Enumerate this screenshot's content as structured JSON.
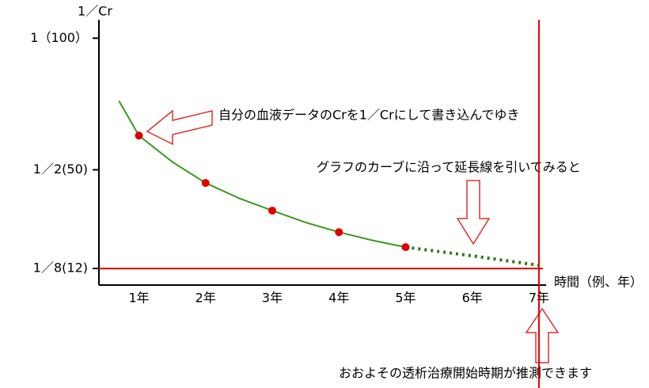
{
  "chart_data": {
    "type": "line",
    "y_label": "1／Cr",
    "x_label": "時間（例、年）",
    "xlim": [
      0.4,
      7.06
    ],
    "ylim": [
      0.062,
      1.07
    ],
    "xticks": [
      {
        "value": 1,
        "label": "1年"
      },
      {
        "value": 2,
        "label": "2年"
      },
      {
        "value": 3,
        "label": "3年"
      },
      {
        "value": 4,
        "label": "4年"
      },
      {
        "value": 5,
        "label": "5年"
      },
      {
        "value": 6,
        "label": "6年"
      },
      {
        "value": 7,
        "label": "7年"
      }
    ],
    "yticks": [
      {
        "value": 1,
        "label": "1（100）"
      },
      {
        "value": 0.5,
        "label": "1／2(50)"
      },
      {
        "value": 0.125,
        "label": "1／8(12)"
      }
    ],
    "curve": {
      "color": "#3a9a1a",
      "x": [
        0.7,
        1,
        1.5,
        2,
        2.5,
        3,
        3.5,
        4,
        4.5,
        5
      ],
      "values": [
        0.762,
        0.63,
        0.53,
        0.45,
        0.392,
        0.345,
        0.3,
        0.263,
        0.232,
        0.206
      ]
    },
    "points": {
      "color": "#e00000",
      "x": [
        1,
        2,
        3,
        4,
        5
      ],
      "values": [
        0.63,
        0.45,
        0.345,
        0.263,
        0.206
      ]
    },
    "extrapolation": {
      "color": "#2a7a10",
      "x": [
        5,
        6,
        7
      ],
      "values": [
        0.206,
        0.173,
        0.137
      ]
    },
    "reference_color": "#e00000",
    "annotations": [
      "自分の血液データのCrを1／Crにして書き込んでゆき",
      "グラフのカーブに沿って延長線を引いてみると",
      "おおよその透析治療開始時期が推測できます"
    ]
  }
}
